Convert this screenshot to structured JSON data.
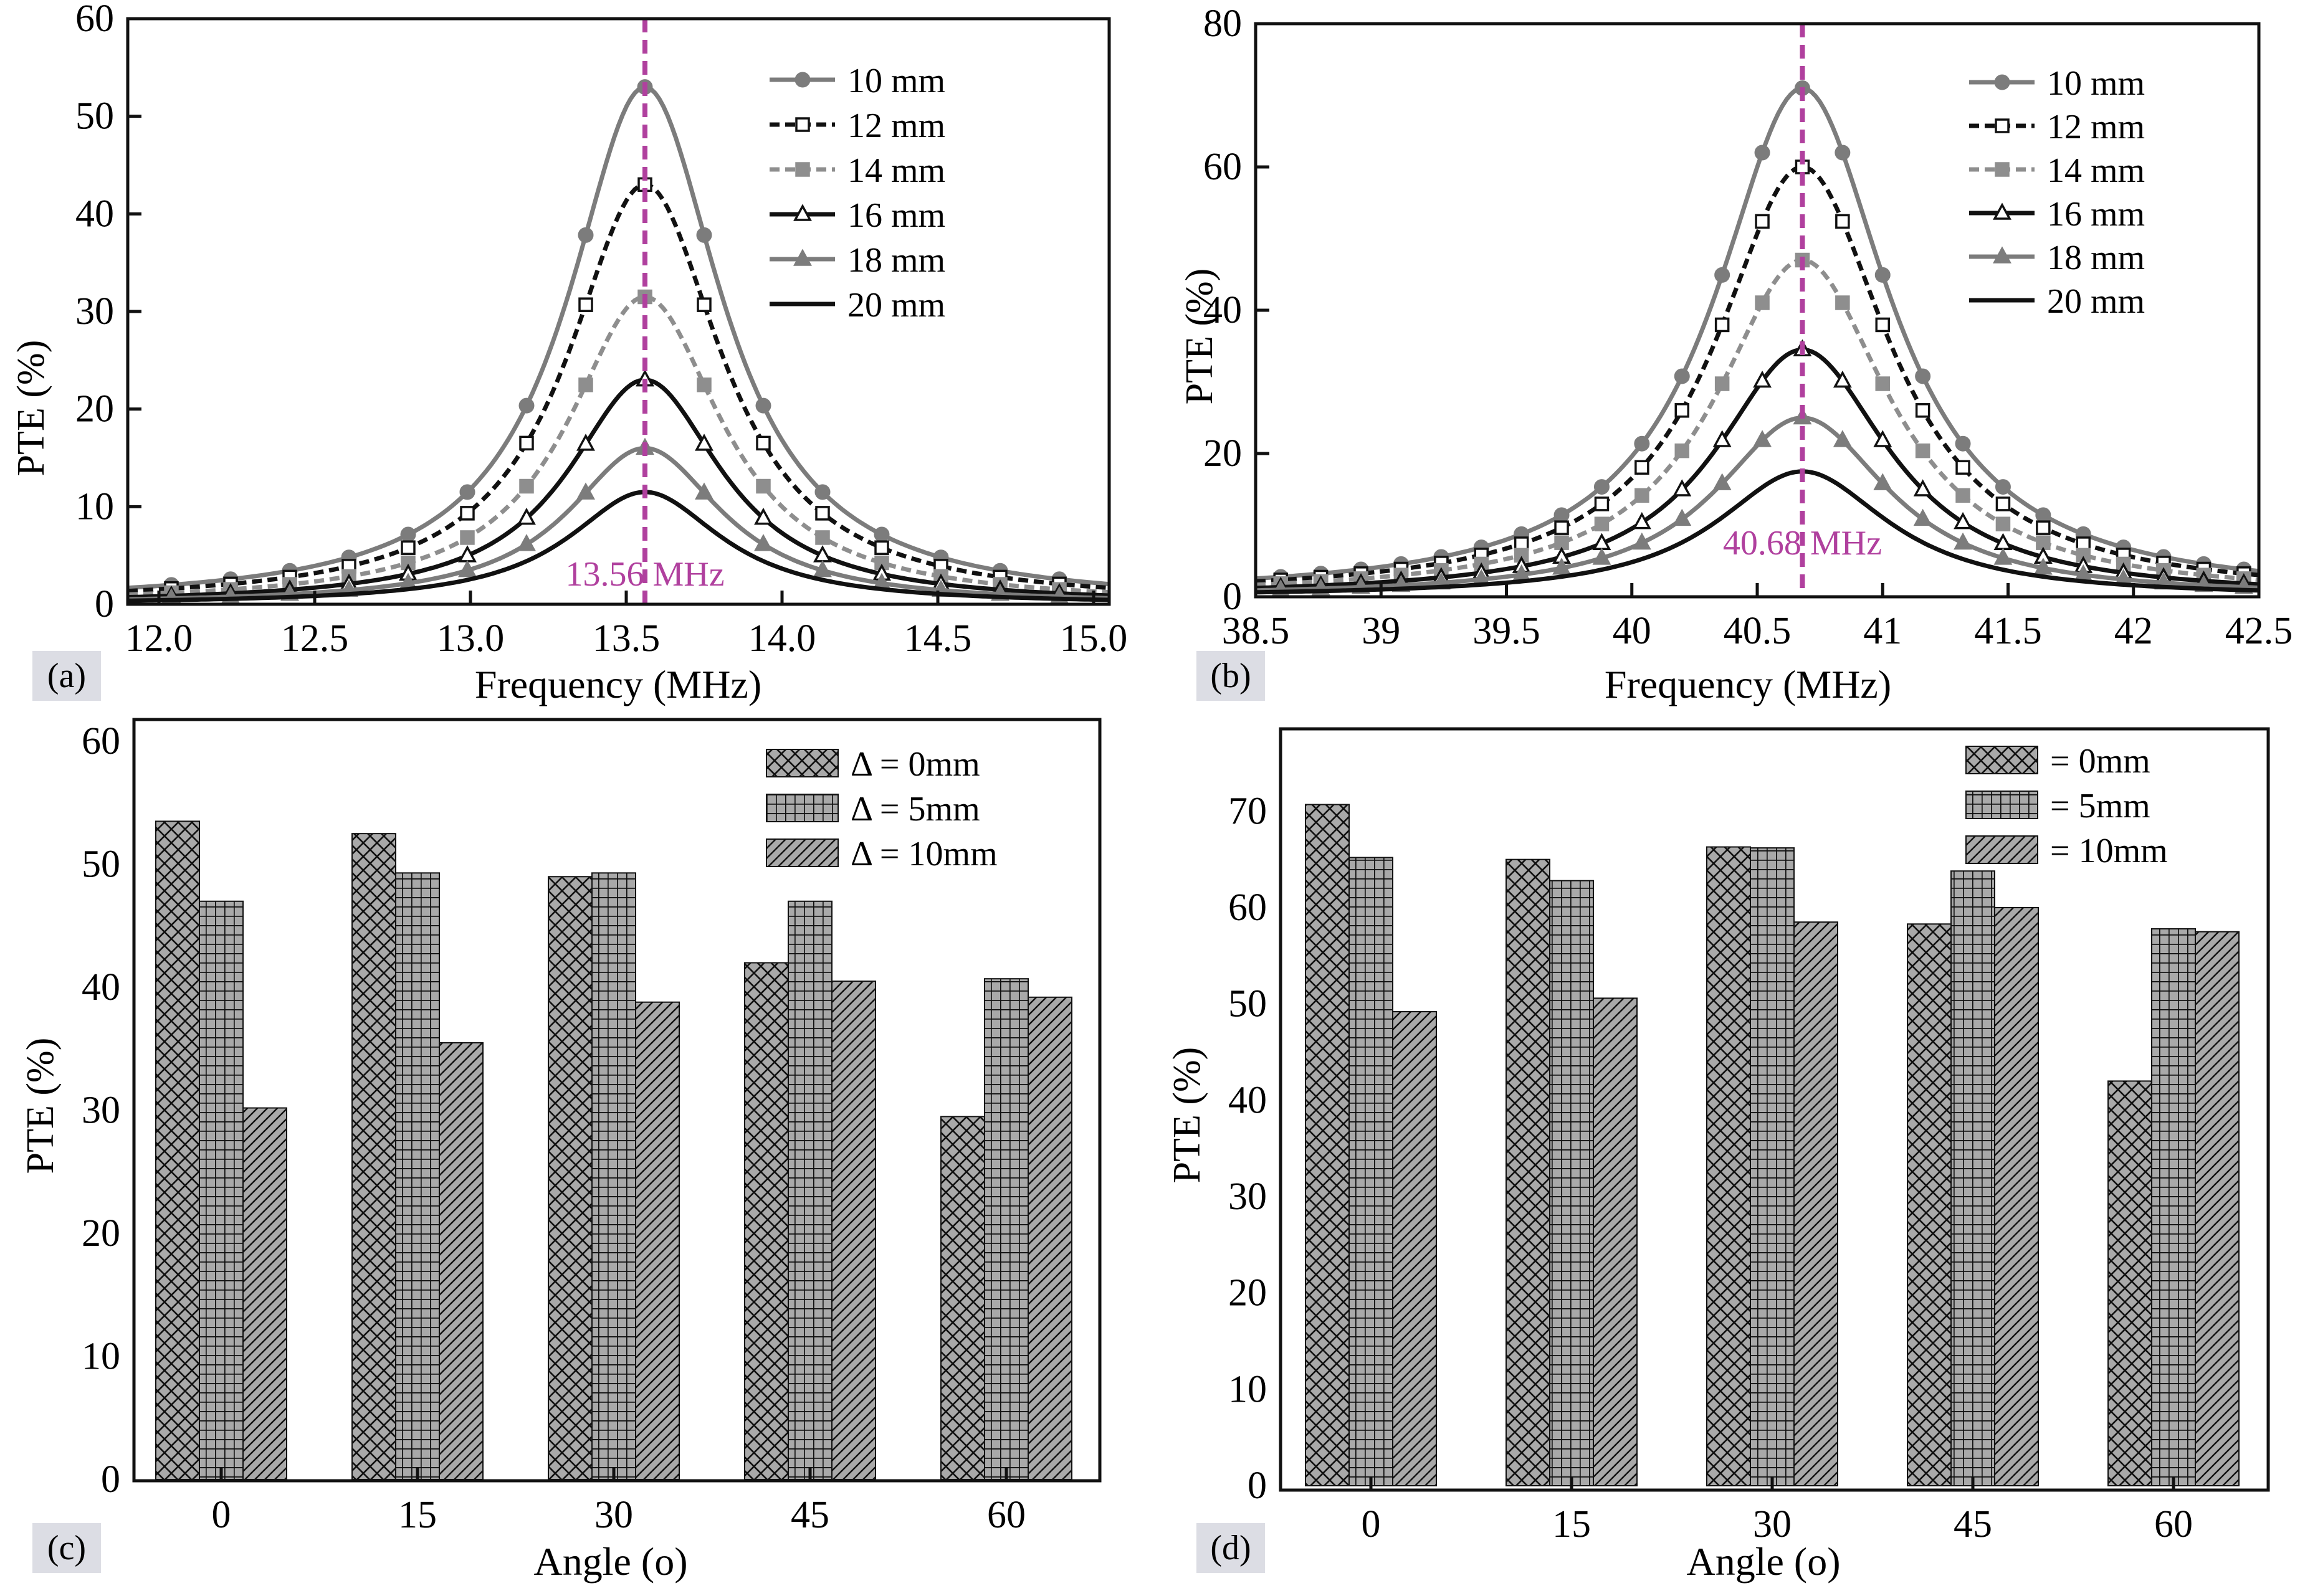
{
  "colors": {
    "gray": "#7c7c7c",
    "lightgray": "#8e8e8e",
    "black": "#111111",
    "marker": "#b0409e",
    "panelLabelBg": "#dcdde4",
    "barFill": "#a9a9a9"
  },
  "chart_data": [
    {
      "panel": "(a)",
      "type": "line",
      "xlabel": "Frequency (MHz)",
      "ylabel": "PTE (%)",
      "xlim": [
        11.9,
        15.05
      ],
      "ylim": [
        0,
        60
      ],
      "xticks": [
        "12.0",
        "12.5",
        "13.0",
        "13.5",
        "14.0",
        "14.5",
        "15.0"
      ],
      "yticks": [
        "0",
        "10",
        "20",
        "30",
        "40",
        "50",
        "60"
      ],
      "center_freq": 13.56,
      "gamma": 0.3,
      "marker_label": "13.56 MHz",
      "series": [
        {
          "name": "10 mm",
          "peak": 53,
          "legend": "10 mm"
        },
        {
          "name": "12 mm",
          "peak": 43,
          "legend": "12 mm"
        },
        {
          "name": "14 mm",
          "peak": 31.5,
          "legend": "14 mm"
        },
        {
          "name": "16 mm",
          "peak": 23,
          "legend": "16 mm"
        },
        {
          "name": "18 mm",
          "peak": 16,
          "legend": "18 mm"
        },
        {
          "name": "20 mm",
          "peak": 11.5,
          "legend": "20 mm"
        }
      ]
    },
    {
      "panel": "(b)",
      "type": "line",
      "xlabel": "Frequency (MHz)",
      "ylabel": "PTE (%)",
      "xlim": [
        38.5,
        42.5
      ],
      "ylim": [
        0,
        80
      ],
      "xticks": [
        "38.5",
        "39",
        "39.5",
        "40",
        "40.5",
        "41",
        "41.5",
        "42",
        "42.5"
      ],
      "yticks": [
        "0",
        "20",
        "40",
        "60",
        "80"
      ],
      "center_freq": 40.68,
      "gamma": 0.42,
      "marker_label": "40.68 MHz",
      "series": [
        {
          "name": "10 mm",
          "peak": 71,
          "legend": "10 mm"
        },
        {
          "name": "12 mm",
          "peak": 60,
          "legend": "12 mm"
        },
        {
          "name": "14 mm",
          "peak": 47,
          "legend": "14 mm"
        },
        {
          "name": "16 mm",
          "peak": 34.5,
          "legend": "16 mm"
        },
        {
          "name": "18 mm",
          "peak": 25,
          "legend": "18 mm"
        },
        {
          "name": "20 mm",
          "peak": 17.5,
          "legend": "20 mm"
        }
      ]
    },
    {
      "panel": "(c)",
      "type": "bar",
      "xlabel": "Angle (o)",
      "ylabel": "PTE (%)",
      "ylim": [
        0,
        60
      ],
      "yticks": [
        "0",
        "10",
        "20",
        "30",
        "40",
        "50",
        "60"
      ],
      "categories": [
        "0",
        "15",
        "30",
        "45",
        "60"
      ],
      "series": [
        {
          "name": "Δ = 0mm",
          "values": [
            53.5,
            52.5,
            49,
            42,
            29.5
          ]
        },
        {
          "name": "Δ = 5mm",
          "values": [
            47,
            49.3,
            49.3,
            47,
            40.7
          ]
        },
        {
          "name": "Δ = 10mm",
          "values": [
            30.2,
            35.5,
            38.8,
            40.5,
            39.2
          ]
        }
      ]
    },
    {
      "panel": "(d)",
      "type": "bar",
      "xlabel": "Angle (o)",
      "ylabel": "PTE (%)",
      "ylim": [
        0,
        75
      ],
      "yticks": [
        "0",
        "10",
        "20",
        "30",
        "40",
        "50",
        "60",
        "70"
      ],
      "categories": [
        "0",
        "15",
        "30",
        "45",
        "60"
      ],
      "series": [
        {
          "name": "= 0mm",
          "values": [
            70.7,
            65,
            66.3,
            58.3,
            42
          ]
        },
        {
          "name": "= 5mm",
          "values": [
            65.2,
            62.8,
            66.2,
            63.8,
            57.8
          ]
        },
        {
          "name": "= 10mm",
          "values": [
            49.2,
            50.6,
            58.5,
            60,
            57.5
          ]
        }
      ]
    }
  ]
}
